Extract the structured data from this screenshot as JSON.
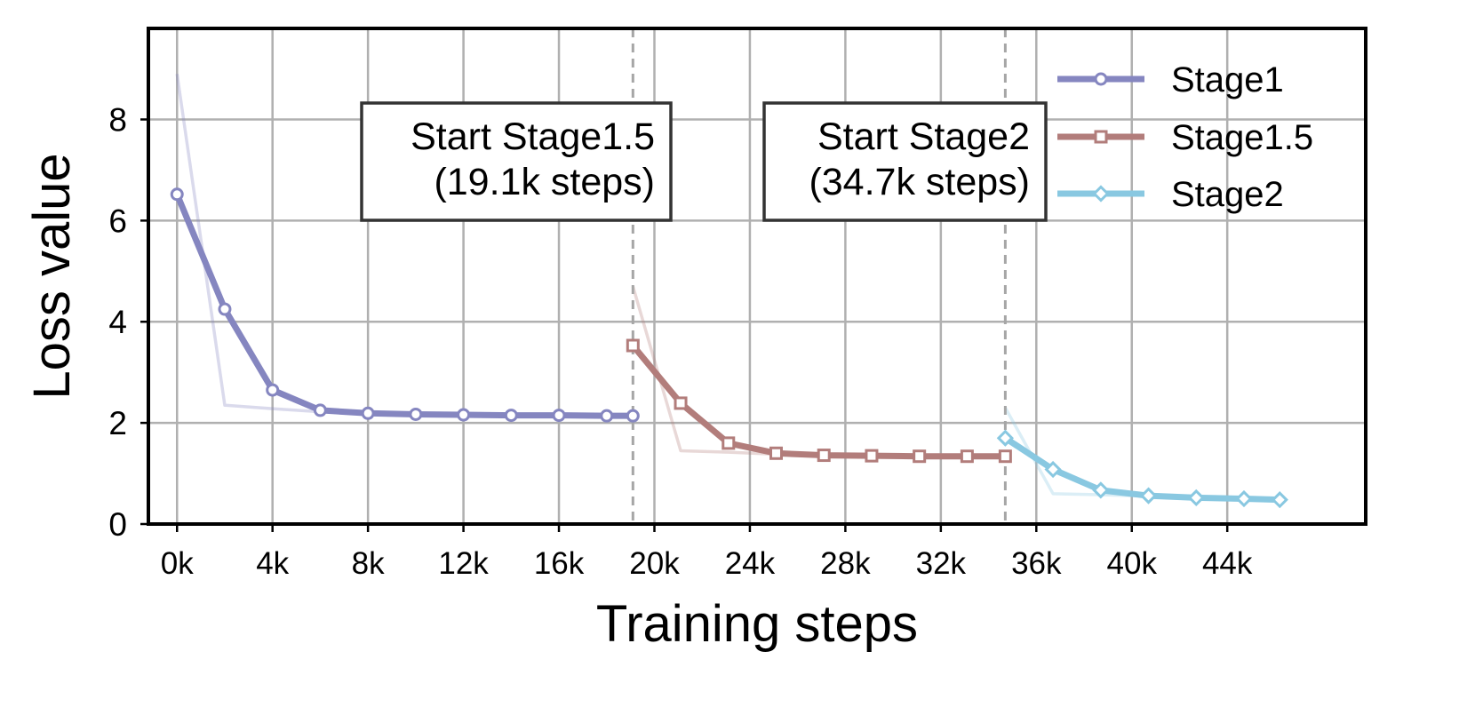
{
  "chart_data": {
    "type": "line",
    "xlabel": "Training steps",
    "ylabel": "Loss value",
    "xlim": [
      -1.2,
      49.8
    ],
    "ylim": [
      0,
      9.8
    ],
    "x_unit_label_suffix": "k",
    "xticks": [
      0,
      4,
      8,
      12,
      16,
      20,
      24,
      28,
      32,
      36,
      40,
      44
    ],
    "xtick_labels": [
      "0k",
      "4k",
      "8k",
      "12k",
      "16k",
      "20k",
      "24k",
      "28k",
      "32k",
      "36k",
      "40k",
      "44k"
    ],
    "yticks": [
      0,
      2,
      4,
      6,
      8
    ],
    "ytick_labels": [
      "0",
      "2",
      "4",
      "6",
      "8"
    ],
    "grid": true,
    "legend_position": "top-right",
    "stage_markers": [
      {
        "x": 19.1,
        "label_line1": "Start Stage1.5",
        "label_line2": "(19.1k steps)"
      },
      {
        "x": 34.7,
        "label_line1": "Start Stage2",
        "label_line2": "(34.7k steps)"
      }
    ],
    "series": [
      {
        "name": "Stage1",
        "color": "#8586c0",
        "marker": "circle",
        "x": [
          0,
          2,
          4,
          6,
          8,
          10,
          12,
          14,
          16,
          18,
          19.1
        ],
        "y": [
          6.52,
          4.25,
          2.65,
          2.25,
          2.19,
          2.17,
          2.16,
          2.15,
          2.15,
          2.14,
          2.14
        ],
        "raw_x": [
          0,
          2,
          4,
          6,
          8,
          10,
          12,
          14,
          16,
          18,
          19.1
        ],
        "raw_y": [
          8.9,
          2.35,
          2.28,
          2.22,
          2.19,
          2.17,
          2.16,
          2.15,
          2.15,
          2.14,
          2.14
        ]
      },
      {
        "name": "Stage1.5",
        "color": "#b27d7b",
        "marker": "square",
        "x": [
          19.1,
          21.1,
          23.1,
          25.1,
          27.1,
          29.1,
          31.1,
          33.1,
          34.7
        ],
        "y": [
          3.53,
          2.39,
          1.6,
          1.4,
          1.36,
          1.35,
          1.34,
          1.34,
          1.34
        ],
        "raw_x": [
          19.1,
          21.1,
          23.1,
          25.1,
          27.1,
          29.1,
          31.1,
          33.1,
          34.7
        ],
        "raw_y": [
          4.7,
          1.45,
          1.42,
          1.38,
          1.36,
          1.35,
          1.34,
          1.34,
          1.34
        ]
      },
      {
        "name": "Stage2",
        "color": "#89c8e1",
        "marker": "diamond",
        "x": [
          34.7,
          36.7,
          38.7,
          40.7,
          42.7,
          44.7,
          46.2
        ],
        "y": [
          1.7,
          1.08,
          0.67,
          0.56,
          0.52,
          0.5,
          0.48
        ],
        "raw_x": [
          34.7,
          36.7,
          38.7,
          40.7,
          42.7,
          44.7,
          46.2
        ],
        "raw_y": [
          2.3,
          0.6,
          0.58,
          0.55,
          0.52,
          0.5,
          0.48
        ]
      }
    ]
  }
}
